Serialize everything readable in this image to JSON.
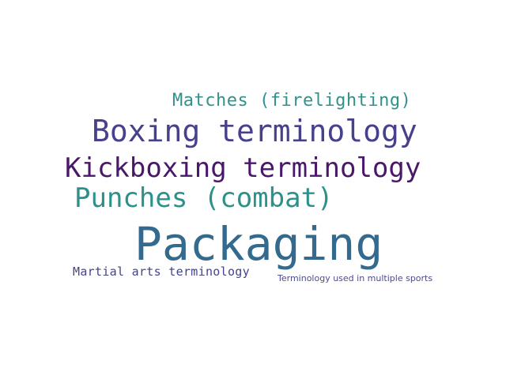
{
  "cloud": {
    "words": [
      {
        "text": "Matches (firelighting)",
        "color": "#31928c"
      },
      {
        "text": "Boxing terminology",
        "color": "#46418a"
      },
      {
        "text": "Kickboxing terminology",
        "color": "#4a1868"
      },
      {
        "text": "Punches (combat)",
        "color": "#2c918b"
      },
      {
        "text": "Packaging",
        "color": "#336a8e"
      },
      {
        "text": "Martial arts terminology",
        "color": "#42448b"
      },
      {
        "text": "Terminology used in multiple sports",
        "color": "#4c4b8e"
      }
    ]
  }
}
